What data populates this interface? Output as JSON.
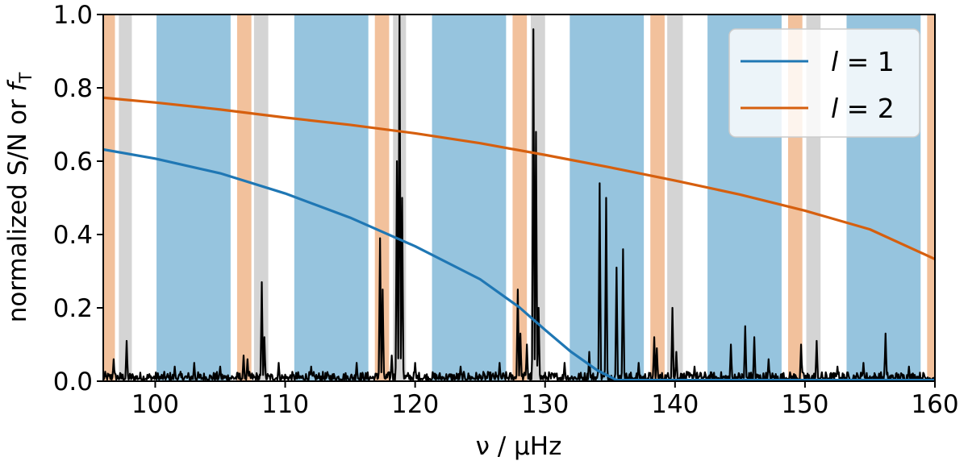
{
  "chart_data": {
    "type": "line",
    "xlabel": "ν / μHz",
    "ylabel_main": "normalized S/N or ",
    "ylabel_f": "f",
    "ylabel_sub": "T",
    "xlim": [
      96,
      160
    ],
    "ylim": [
      0.0,
      1.0
    ],
    "grid": false,
    "legend_position": "top-right",
    "x_ticks": [
      100,
      110,
      120,
      130,
      140,
      150,
      160
    ],
    "x_tick_labels": [
      "100",
      "110",
      "120",
      "130",
      "140",
      "150",
      "160"
    ],
    "y_ticks": [
      0.0,
      0.2,
      0.4,
      0.6,
      0.8,
      1.0
    ],
    "y_tick_labels": [
      "0.0",
      "0.2",
      "0.4",
      "0.6",
      "0.8",
      "1.0"
    ],
    "colors": {
      "l1": "#1f77b4",
      "l2": "#d65f0e",
      "band_l0": "#96c4de",
      "band_l2": "#f2c19c",
      "band_l3": "#d4d4d4",
      "spectrum": "#000000"
    },
    "bands": [
      {
        "kind": "l2",
        "x0": 96.0,
        "x1": 96.9
      },
      {
        "kind": "l3",
        "x0": 97.2,
        "x1": 98.2
      },
      {
        "kind": "l0",
        "x0": 100.1,
        "x1": 105.8
      },
      {
        "kind": "l2",
        "x0": 106.3,
        "x1": 107.4
      },
      {
        "kind": "l3",
        "x0": 107.6,
        "x1": 108.7
      },
      {
        "kind": "l0",
        "x0": 110.7,
        "x1": 116.4
      },
      {
        "kind": "l2",
        "x0": 116.9,
        "x1": 118.0
      },
      {
        "kind": "l3",
        "x0": 118.3,
        "x1": 119.3
      },
      {
        "kind": "l0",
        "x0": 121.3,
        "x1": 127.0
      },
      {
        "kind": "l2",
        "x0": 127.5,
        "x1": 128.6
      },
      {
        "kind": "l3",
        "x0": 128.9,
        "x1": 130.0
      },
      {
        "kind": "l0",
        "x0": 131.9,
        "x1": 137.6
      },
      {
        "kind": "l2",
        "x0": 138.1,
        "x1": 139.2
      },
      {
        "kind": "l3",
        "x0": 139.4,
        "x1": 140.6
      },
      {
        "kind": "l0",
        "x0": 142.5,
        "x1": 148.2
      },
      {
        "kind": "l2",
        "x0": 148.7,
        "x1": 149.8
      },
      {
        "kind": "l3",
        "x0": 150.1,
        "x1": 151.2
      },
      {
        "kind": "l0",
        "x0": 153.2,
        "x1": 158.9
      },
      {
        "kind": "l2",
        "x0": 159.4,
        "x1": 160.0
      }
    ],
    "series": [
      {
        "name": "l = 1",
        "legend_symbol": "l",
        "legend_value": " = 1",
        "x": [
          96,
          100,
          105,
          110,
          115,
          120,
          125,
          128,
          130,
          132,
          134,
          135.5,
          160
        ],
        "values": [
          0.632,
          0.607,
          0.567,
          0.512,
          0.446,
          0.368,
          0.278,
          0.202,
          0.14,
          0.08,
          0.03,
          0.003,
          0.003
        ]
      },
      {
        "name": "l = 2",
        "legend_symbol": "l",
        "legend_value": " = 2",
        "x": [
          96,
          100,
          105,
          110,
          115,
          120,
          125,
          130,
          135,
          140,
          145,
          150,
          155,
          160
        ],
        "values": [
          0.773,
          0.76,
          0.741,
          0.719,
          0.699,
          0.676,
          0.649,
          0.617,
          0.583,
          0.547,
          0.509,
          0.465,
          0.414,
          0.333
        ]
      }
    ],
    "spectrum_peaks": [
      {
        "x": 96.8,
        "y": 0.06
      },
      {
        "x": 97.8,
        "y": 0.11
      },
      {
        "x": 101.5,
        "y": 0.04
      },
      {
        "x": 103.0,
        "y": 0.05
      },
      {
        "x": 105.0,
        "y": 0.04
      },
      {
        "x": 106.8,
        "y": 0.07
      },
      {
        "x": 107.1,
        "y": 0.06
      },
      {
        "x": 108.2,
        "y": 0.27
      },
      {
        "x": 108.4,
        "y": 0.12
      },
      {
        "x": 109.5,
        "y": 0.05
      },
      {
        "x": 112.0,
        "y": 0.04
      },
      {
        "x": 115.5,
        "y": 0.05
      },
      {
        "x": 117.3,
        "y": 0.39
      },
      {
        "x": 117.5,
        "y": 0.25
      },
      {
        "x": 118.2,
        "y": 0.07
      },
      {
        "x": 118.6,
        "y": 0.6
      },
      {
        "x": 118.8,
        "y": 1.0
      },
      {
        "x": 119.0,
        "y": 0.5
      },
      {
        "x": 120.0,
        "y": 0.05
      },
      {
        "x": 123.5,
        "y": 0.04
      },
      {
        "x": 126.5,
        "y": 0.05
      },
      {
        "x": 127.9,
        "y": 0.25
      },
      {
        "x": 128.1,
        "y": 0.13
      },
      {
        "x": 128.6,
        "y": 0.1
      },
      {
        "x": 129.1,
        "y": 0.96
      },
      {
        "x": 129.3,
        "y": 0.68
      },
      {
        "x": 129.5,
        "y": 0.2
      },
      {
        "x": 131.5,
        "y": 0.05
      },
      {
        "x": 133.4,
        "y": 0.08
      },
      {
        "x": 134.2,
        "y": 0.54
      },
      {
        "x": 134.7,
        "y": 0.5
      },
      {
        "x": 135.5,
        "y": 0.31
      },
      {
        "x": 136.0,
        "y": 0.36
      },
      {
        "x": 137.2,
        "y": 0.05
      },
      {
        "x": 138.4,
        "y": 0.12
      },
      {
        "x": 138.6,
        "y": 0.09
      },
      {
        "x": 139.8,
        "y": 0.2
      },
      {
        "x": 140.1,
        "y": 0.08
      },
      {
        "x": 141.5,
        "y": 0.04
      },
      {
        "x": 144.3,
        "y": 0.1
      },
      {
        "x": 145.4,
        "y": 0.15
      },
      {
        "x": 146.1,
        "y": 0.12
      },
      {
        "x": 147.2,
        "y": 0.06
      },
      {
        "x": 149.7,
        "y": 0.1
      },
      {
        "x": 150.9,
        "y": 0.11
      },
      {
        "x": 152.5,
        "y": 0.04
      },
      {
        "x": 154.5,
        "y": 0.05
      },
      {
        "x": 156.2,
        "y": 0.13
      },
      {
        "x": 158.0,
        "y": 0.04
      }
    ]
  }
}
